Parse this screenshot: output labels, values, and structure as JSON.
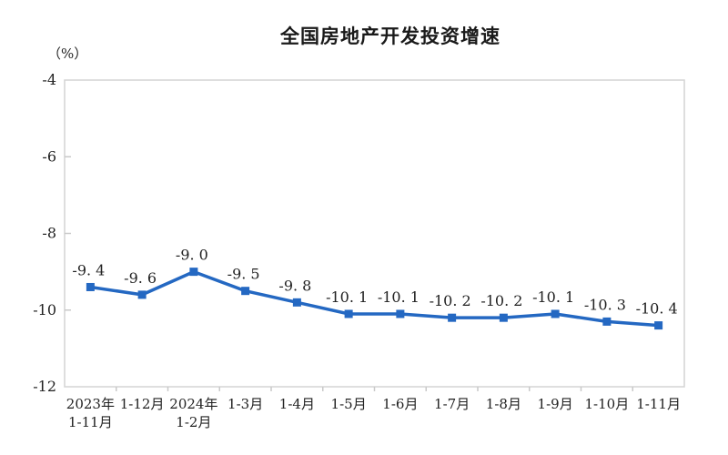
{
  "chart_data": {
    "type": "line",
    "title": "全国房地产开发投资增速",
    "unit_label": "（%）",
    "categories": [
      [
        "2023年",
        "1-11月"
      ],
      [
        "1-12月"
      ],
      [
        "2024年",
        "1-2月"
      ],
      [
        "1-3月"
      ],
      [
        "1-4月"
      ],
      [
        "1-5月"
      ],
      [
        "1-6月"
      ],
      [
        "1-7月"
      ],
      [
        "1-8月"
      ],
      [
        "1-9月"
      ],
      [
        "1-10月"
      ],
      [
        "1-11月"
      ]
    ],
    "values": [
      -9.4,
      -9.6,
      -9.0,
      -9.5,
      -9.8,
      -10.1,
      -10.1,
      -10.2,
      -10.2,
      -10.1,
      -10.3,
      -10.4
    ],
    "point_labels": [
      "-9. 4",
      "-9. 6",
      "-9. 0",
      "-9. 5",
      "-9. 8",
      "-10. 1",
      "-10. 1",
      "-10. 2",
      "-10. 2",
      "-10. 1",
      "-10. 3",
      "-10. 4"
    ],
    "y_ticks": [
      -4,
      -6,
      -8,
      -10,
      -12
    ],
    "ylim": [
      -12,
      -4
    ],
    "grid": false,
    "legend": null,
    "line_color": "#2468c2",
    "marker": "square",
    "axis_color": "#d4d4d4",
    "tick_color": "#c9c9c9",
    "label_color": "#222222"
  }
}
